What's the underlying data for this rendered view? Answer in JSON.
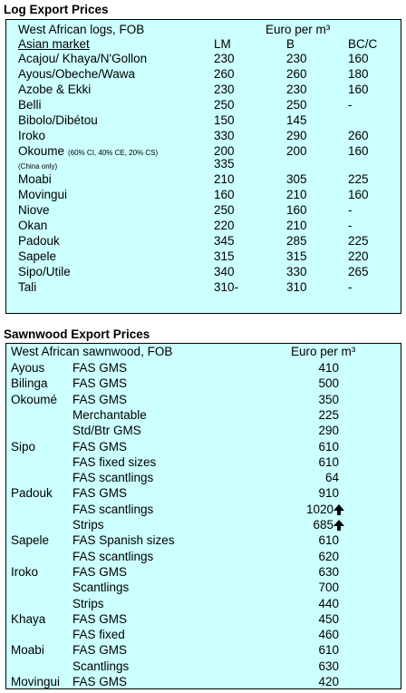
{
  "log_table": {
    "title": "Log Export Prices",
    "caption": "West African logs, FOB",
    "unit": "Euro per m³",
    "columns": {
      "name": "Asian market",
      "lm": "LM",
      "b": "B",
      "bcc": "BC/C"
    },
    "rows": [
      {
        "name": "Acajou/ Khaya/N'Gollon",
        "lm": "230",
        "b": "230",
        "bcc": "160"
      },
      {
        "name": "Ayous/Obeche/Wawa",
        "lm": "260",
        "b": "260",
        "bcc": "180"
      },
      {
        "name": "Azobe & Ekki",
        "lm": "230",
        "b": "230",
        "bcc": "160"
      },
      {
        "name": "Belli",
        "lm": "250",
        "b": "250",
        "bcc": "-"
      },
      {
        "name": "Bibolo/Dibétou",
        "lm": "150",
        "b": "145"
      },
      {
        "name": "Iroko",
        "lm": "330",
        "b": "290",
        "bcc": "260"
      },
      {
        "name": "Okoume",
        "note": "(60% CI, 40% CE, 20% CS)",
        "lm": "200",
        "b": "200",
        "bcc": "160"
      },
      {
        "name": "(China only)",
        "lm": "335"
      },
      {
        "name": "Moabi",
        "lm": "210",
        "b": "305",
        "bcc": "225"
      },
      {
        "name": "Movingui",
        "lm": "160",
        "b": "210",
        "bcc": "160"
      },
      {
        "name": "Niove",
        "lm": "250",
        "b": "160",
        "bcc": "-"
      },
      {
        "name": "Okan",
        "lm": "220",
        "b": "210",
        "bcc": "-"
      },
      {
        "name": "Padouk",
        "lm": "345",
        "b": "285",
        "bcc": "225"
      },
      {
        "name": "Sapele",
        "lm": "315",
        "b": "315",
        "bcc": "220"
      },
      {
        "name": "Sipo/Utile",
        "lm": "340",
        "b": "330",
        "bcc": "265"
      },
      {
        "name": "Tali",
        "lm": "310-",
        "b": "310",
        "bcc": "-"
      }
    ]
  },
  "sawn_table": {
    "title": "Sawnwood Export Prices",
    "caption": "West African sawnwood, FOB",
    "unit": "Euro per m³",
    "rows": [
      {
        "species": "Ayous",
        "grade": "FAS GMS",
        "price": "410"
      },
      {
        "species": "Bilinga",
        "grade": "FAS GMS",
        "price": "500"
      },
      {
        "species": "Okoumé",
        "grade": "FAS GMS",
        "price": "350"
      },
      {
        "grade": "Merchantable",
        "price": "225"
      },
      {
        "grade": "Std/Btr GMS",
        "price": "290"
      },
      {
        "species": "Sipo",
        "grade": "FAS GMS",
        "price": "610"
      },
      {
        "grade": "FAS fixed sizes",
        "price": "610"
      },
      {
        "grade": "FAS scantlings",
        "price": "64"
      },
      {
        "species": "Padouk",
        "grade": "FAS GMS",
        "price": "910"
      },
      {
        "grade": "FAS scantlings",
        "price": "1020"
      },
      {
        "grade": "Strips",
        "price": "685"
      },
      {
        "species": "Sapele",
        "grade": "FAS Spanish sizes",
        "price": "610"
      },
      {
        "grade": "FAS scantlings",
        "price": "620"
      },
      {
        "species": "Iroko",
        "grade": "FAS GMS",
        "price": "630"
      },
      {
        "grade": "Scantlings",
        "price": "700"
      },
      {
        "grade": "Strips",
        "price": "440"
      },
      {
        "species": "Khaya",
        "grade": "FAS GMS",
        "price": "450"
      },
      {
        "grade": "FAS fixed",
        "price": "460"
      },
      {
        "species": "Moabi",
        "grade": "FAS GMS",
        "price": "610"
      },
      {
        "grade": "Scantlings",
        "price": "630"
      },
      {
        "species": "Movingui",
        "grade": "FAS GMS",
        "price": "420"
      }
    ]
  }
}
